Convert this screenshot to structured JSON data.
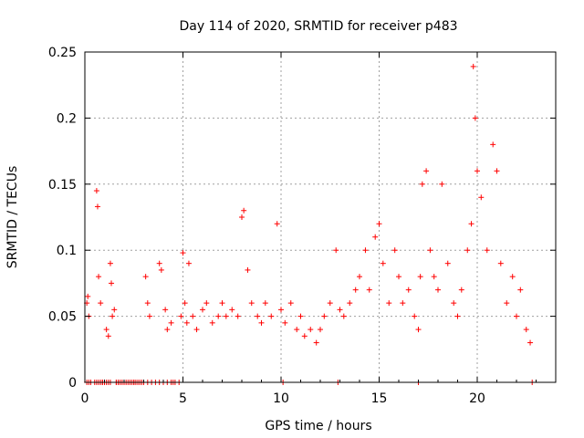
{
  "chart_data": {
    "type": "scatter",
    "title": "Day 114 of 2020, SRMTID for receiver p483",
    "xlabel": "GPS time / hours",
    "ylabel": "SRMTID / TECUs",
    "xlim": [
      0,
      24
    ],
    "ylim": [
      0,
      0.25
    ],
    "xticks": [
      0,
      5,
      10,
      15,
      20
    ],
    "yticks": [
      0,
      0.05,
      0.1,
      0.15,
      0.2,
      0.25
    ],
    "xtick_labels": [
      "0",
      "5",
      "10",
      "15",
      "20"
    ],
    "ytick_labels": [
      "0",
      "0.05",
      "0.1",
      "0.15",
      "0.2",
      "0.25"
    ],
    "grid": true,
    "marker": "+",
    "series": [
      {
        "name": "SRMTID",
        "color": "#ff0000",
        "x": [
          0.1,
          0.15,
          0.2,
          0.3,
          0.6,
          0.65,
          0.7,
          0.8,
          0.9,
          1.0,
          1.1,
          1.2,
          1.3,
          1.35,
          1.4,
          1.5,
          1.6,
          1.7,
          2.0,
          2.5,
          3.1,
          3.2,
          3.3,
          3.8,
          3.9,
          4.1,
          4.2,
          4.4,
          4.5,
          4.9,
          5.0,
          5.1,
          5.2,
          5.3,
          5.5,
          5.7,
          6.0,
          6.2,
          6.5,
          6.8,
          7.0,
          7.2,
          7.5,
          7.8,
          8.0,
          8.1,
          8.3,
          8.5,
          8.8,
          9.0,
          9.2,
          9.5,
          9.8,
          10.0,
          10.2,
          10.5,
          10.8,
          11.0,
          11.2,
          11.5,
          11.8,
          12.0,
          12.2,
          12.5,
          12.8,
          13.0,
          13.2,
          13.5,
          13.8,
          14.0,
          14.3,
          14.5,
          14.8,
          15.0,
          15.2,
          15.5,
          15.8,
          16.0,
          16.2,
          16.5,
          16.8,
          17.0,
          17.1,
          17.2,
          17.4,
          17.6,
          17.8,
          18.0,
          18.2,
          18.5,
          18.8,
          19.0,
          19.2,
          19.5,
          19.7,
          19.8,
          19.9,
          20.0,
          20.2,
          20.5,
          20.8,
          21.0,
          21.2,
          21.5,
          21.8,
          22.0,
          22.2,
          22.5,
          22.7
        ],
        "y": [
          0.06,
          0.065,
          0.05,
          0.0,
          0.145,
          0.133,
          0.08,
          0.06,
          0.0,
          0.0,
          0.04,
          0.035,
          0.09,
          0.075,
          0.05,
          0.055,
          0.0,
          0.0,
          0.0,
          0.0,
          0.08,
          0.06,
          0.05,
          0.09,
          0.085,
          0.055,
          0.04,
          0.045,
          0.0,
          0.05,
          0.098,
          0.06,
          0.045,
          0.09,
          0.05,
          0.04,
          0.055,
          0.06,
          0.045,
          0.05,
          0.06,
          0.05,
          0.055,
          0.05,
          0.125,
          0.13,
          0.085,
          0.06,
          0.05,
          0.045,
          0.06,
          0.05,
          0.12,
          0.055,
          0.045,
          0.06,
          0.04,
          0.05,
          0.035,
          0.04,
          0.03,
          0.04,
          0.05,
          0.06,
          0.1,
          0.055,
          0.05,
          0.06,
          0.07,
          0.08,
          0.1,
          0.07,
          0.11,
          0.12,
          0.09,
          0.06,
          0.1,
          0.08,
          0.06,
          0.07,
          0.05,
          0.04,
          0.08,
          0.15,
          0.16,
          0.1,
          0.08,
          0.07,
          0.15,
          0.09,
          0.06,
          0.05,
          0.07,
          0.1,
          0.12,
          0.239,
          0.2,
          0.16,
          0.14,
          0.1,
          0.18,
          0.16,
          0.09,
          0.06,
          0.08,
          0.05,
          0.07,
          0.04,
          0.03
        ],
        "zero_x": [
          0.1,
          0.2,
          0.5,
          0.6,
          0.7,
          0.8,
          0.9,
          1.0,
          1.1,
          1.2,
          1.3,
          1.6,
          1.7,
          1.8,
          1.9,
          2.0,
          2.1,
          2.2,
          2.3,
          2.4,
          2.5,
          2.6,
          2.7,
          2.8,
          2.9,
          3.0,
          3.2,
          3.4,
          3.6,
          3.8,
          4.0,
          4.2,
          4.4,
          4.6,
          4.8,
          10.1,
          12.9,
          17.0,
          22.8
        ]
      }
    ]
  }
}
